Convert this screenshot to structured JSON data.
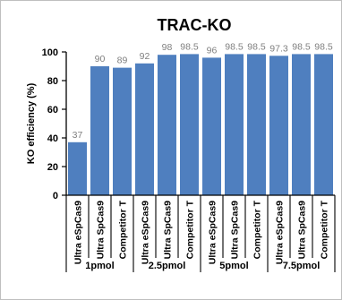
{
  "chart_data": {
    "type": "bar",
    "title": "TRAC-KO",
    "ylabel": "KO efficiency (%)",
    "xlabel": "",
    "ylim": [
      0,
      100
    ],
    "yticks": [
      0,
      20,
      40,
      60,
      80,
      100
    ],
    "grid": false,
    "legend": "none",
    "bar_color": "#4f7fbf",
    "groups": [
      "1pmol",
      "2.5pmol",
      "5pmol",
      "7.5pmol"
    ],
    "categories": [
      "Ultra eSpCas9",
      "Ultra SpCas9",
      "Competitor T",
      "Ultra eSpCas9",
      "Ultra SpCas9",
      "Competitor T",
      "Ultra eSpCas9",
      "Ultra SpCas9",
      "Competitor T",
      "Ultra eSpCas9",
      "Ultra SpCas9",
      "Competitor T"
    ],
    "values": [
      37,
      90,
      89,
      92,
      98,
      98.5,
      96,
      98.5,
      98.5,
      97.3,
      98.5,
      98.5
    ]
  }
}
